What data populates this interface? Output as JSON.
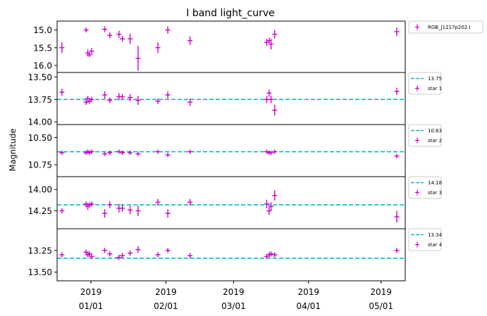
{
  "chart_data": {
    "type": "scatter",
    "title": "I band light_curve",
    "ylabel": "Magnitude",
    "y_inverted": true,
    "x_ticks": [
      {
        "x": 0,
        "line1": "2019",
        "line2": "01/01"
      },
      {
        "x": 31,
        "line1": "2019",
        "line2": "02/01"
      },
      {
        "x": 59,
        "line1": "2019",
        "line2": "03/01"
      },
      {
        "x": 90,
        "line1": "2019",
        "line2": "04/01"
      },
      {
        "x": 120,
        "line1": "2019",
        "line2": "05/01"
      }
    ],
    "xlim": [
      -14,
      130
    ],
    "panels": [
      {
        "name": "RGB_J1117p202 I",
        "label": "RGB_J1117p202 I",
        "ylim": [
          16.2,
          14.75
        ],
        "yticks": [
          15.0,
          15.5,
          16.0
        ],
        "ytick_labels": [
          "15.0",
          "15.5",
          "16.0"
        ],
        "reference": null,
        "points": [
          {
            "x": -12,
            "y": 15.5,
            "err": 0.15
          },
          {
            "x": -2,
            "y": 15.0,
            "err": 0.07
          },
          {
            "x": -1.3,
            "y": 15.65,
            "err": 0.1
          },
          {
            "x": -0.6,
            "y": 15.7,
            "err": 0.07
          },
          {
            "x": 0.3,
            "y": 15.6,
            "err": 0.09
          },
          {
            "x": 5.7,
            "y": 14.98,
            "err": 0.08
          },
          {
            "x": 7.8,
            "y": 15.15,
            "err": 0.08
          },
          {
            "x": 11.6,
            "y": 15.12,
            "err": 0.1
          },
          {
            "x": 13,
            "y": 15.25,
            "err": 0.08
          },
          {
            "x": 16.2,
            "y": 15.25,
            "err": 0.15
          },
          {
            "x": 19.5,
            "y": 15.8,
            "err": 0.35
          },
          {
            "x": 27.7,
            "y": 15.5,
            "err": 0.15
          },
          {
            "x": 31.8,
            "y": 15.0,
            "err": 0.1
          },
          {
            "x": 41,
            "y": 15.3,
            "err": 0.12
          },
          {
            "x": 72.7,
            "y": 15.35,
            "err": 0.1
          },
          {
            "x": 73.7,
            "y": 15.3,
            "err": 0.08
          },
          {
            "x": 74.5,
            "y": 15.4,
            "err": 0.15
          },
          {
            "x": 76,
            "y": 15.12,
            "err": 0.12
          },
          {
            "x": 126.5,
            "y": 15.05,
            "err": 0.12
          }
        ]
      },
      {
        "name": "star 1",
        "label": "star 1",
        "ylim": [
          14.03,
          13.45
        ],
        "yticks": [
          13.5,
          13.75,
          14.0
        ],
        "ytick_labels": [
          "13.50",
          "13.75",
          "14.00"
        ],
        "reference": {
          "value": 13.75,
          "label": "13.75"
        },
        "points": [
          {
            "x": -12,
            "y": 13.67,
            "err": 0.04
          },
          {
            "x": -2,
            "y": 13.78,
            "err": 0.03
          },
          {
            "x": -1.3,
            "y": 13.74,
            "err": 0.03
          },
          {
            "x": -0.6,
            "y": 13.77,
            "err": 0.03
          },
          {
            "x": 0.3,
            "y": 13.75,
            "err": 0.03
          },
          {
            "x": 5.7,
            "y": 13.7,
            "err": 0.04
          },
          {
            "x": 7.8,
            "y": 13.76,
            "err": 0.03
          },
          {
            "x": 11.6,
            "y": 13.72,
            "err": 0.04
          },
          {
            "x": 13,
            "y": 13.72,
            "err": 0.03
          },
          {
            "x": 16.2,
            "y": 13.73,
            "err": 0.04
          },
          {
            "x": 19.5,
            "y": 13.76,
            "err": 0.05
          },
          {
            "x": 27.7,
            "y": 13.77,
            "err": 0.03
          },
          {
            "x": 31.8,
            "y": 13.7,
            "err": 0.04
          },
          {
            "x": 41,
            "y": 13.78,
            "err": 0.04
          },
          {
            "x": 72.7,
            "y": 13.75,
            "err": 0.04
          },
          {
            "x": 73.7,
            "y": 13.68,
            "err": 0.04
          },
          {
            "x": 74.5,
            "y": 13.75,
            "err": 0.04
          },
          {
            "x": 76,
            "y": 13.87,
            "err": 0.06
          },
          {
            "x": 126.5,
            "y": 13.66,
            "err": 0.04
          }
        ]
      },
      {
        "name": "star 2",
        "label": "star 2",
        "ylim": [
          10.86,
          10.38
        ],
        "yticks": [
          10.5,
          10.75
        ],
        "ytick_labels": [
          "10.50",
          "10.75"
        ],
        "reference": {
          "value": 10.63,
          "label": "10.63"
        },
        "points": [
          {
            "x": -12,
            "y": 10.64,
            "err": 0.02
          },
          {
            "x": -2,
            "y": 10.64,
            "err": 0.02
          },
          {
            "x": -1.3,
            "y": 10.63,
            "err": 0.02
          },
          {
            "x": -0.6,
            "y": 10.64,
            "err": 0.02
          },
          {
            "x": 0.3,
            "y": 10.63,
            "err": 0.02
          },
          {
            "x": 5.7,
            "y": 10.65,
            "err": 0.02
          },
          {
            "x": 7.8,
            "y": 10.64,
            "err": 0.02
          },
          {
            "x": 11.6,
            "y": 10.63,
            "err": 0.02
          },
          {
            "x": 13,
            "y": 10.64,
            "err": 0.02
          },
          {
            "x": 16.2,
            "y": 10.64,
            "err": 0.02
          },
          {
            "x": 19.5,
            "y": 10.65,
            "err": 0.02
          },
          {
            "x": 27.7,
            "y": 10.63,
            "err": 0.02
          },
          {
            "x": 31.8,
            "y": 10.66,
            "err": 0.02
          },
          {
            "x": 41,
            "y": 10.63,
            "err": 0.02
          },
          {
            "x": 72.7,
            "y": 10.63,
            "err": 0.02
          },
          {
            "x": 73.7,
            "y": 10.64,
            "err": 0.02
          },
          {
            "x": 74.5,
            "y": 10.64,
            "err": 0.02
          },
          {
            "x": 76,
            "y": 10.63,
            "err": 0.02
          },
          {
            "x": 126.5,
            "y": 10.67,
            "err": 0.02
          }
        ]
      },
      {
        "name": "star 3",
        "label": "star 3",
        "ylim": [
          14.46,
          13.85
        ],
        "yticks": [
          14.0,
          14.25
        ],
        "ytick_labels": [
          "14.00",
          "14.25"
        ],
        "reference": {
          "value": 14.18,
          "label": "14.18"
        },
        "points": [
          {
            "x": -12,
            "y": 14.25,
            "err": 0.03
          },
          {
            "x": -2,
            "y": 14.17,
            "err": 0.03
          },
          {
            "x": -1.3,
            "y": 14.2,
            "err": 0.04
          },
          {
            "x": -0.6,
            "y": 14.18,
            "err": 0.03
          },
          {
            "x": 0.3,
            "y": 14.17,
            "err": 0.03
          },
          {
            "x": 5.7,
            "y": 14.28,
            "err": 0.05
          },
          {
            "x": 7.8,
            "y": 14.18,
            "err": 0.04
          },
          {
            "x": 11.6,
            "y": 14.22,
            "err": 0.05
          },
          {
            "x": 13,
            "y": 14.22,
            "err": 0.04
          },
          {
            "x": 16.2,
            "y": 14.24,
            "err": 0.05
          },
          {
            "x": 19.5,
            "y": 14.25,
            "err": 0.06
          },
          {
            "x": 27.7,
            "y": 14.15,
            "err": 0.04
          },
          {
            "x": 31.8,
            "y": 14.28,
            "err": 0.05
          },
          {
            "x": 41,
            "y": 14.15,
            "err": 0.04
          },
          {
            "x": 72.7,
            "y": 14.17,
            "err": 0.05
          },
          {
            "x": 73.7,
            "y": 14.25,
            "err": 0.05
          },
          {
            "x": 74.5,
            "y": 14.2,
            "err": 0.05
          },
          {
            "x": 76,
            "y": 14.07,
            "err": 0.06
          },
          {
            "x": 126.5,
            "y": 14.32,
            "err": 0.07
          }
        ]
      },
      {
        "name": "star 4",
        "label": "star 4",
        "ylim": [
          13.6,
          13.0
        ],
        "yticks": [
          13.25,
          13.5
        ],
        "ytick_labels": [
          "13.25",
          "13.50"
        ],
        "reference": {
          "value": 13.34,
          "label": "13.34"
        },
        "points": [
          {
            "x": -12,
            "y": 13.3,
            "err": 0.03
          },
          {
            "x": -2,
            "y": 13.27,
            "err": 0.03
          },
          {
            "x": -1.3,
            "y": 13.3,
            "err": 0.03
          },
          {
            "x": -0.6,
            "y": 13.29,
            "err": 0.03
          },
          {
            "x": 0.3,
            "y": 13.32,
            "err": 0.03
          },
          {
            "x": 5.7,
            "y": 13.25,
            "err": 0.03
          },
          {
            "x": 7.8,
            "y": 13.29,
            "err": 0.03
          },
          {
            "x": 11.6,
            "y": 13.33,
            "err": 0.03
          },
          {
            "x": 13,
            "y": 13.31,
            "err": 0.03
          },
          {
            "x": 16.2,
            "y": 13.28,
            "err": 0.03
          },
          {
            "x": 19.5,
            "y": 13.24,
            "err": 0.04
          },
          {
            "x": 27.7,
            "y": 13.3,
            "err": 0.03
          },
          {
            "x": 31.8,
            "y": 13.25,
            "err": 0.03
          },
          {
            "x": 41,
            "y": 13.31,
            "err": 0.03
          },
          {
            "x": 72.7,
            "y": 13.32,
            "err": 0.03
          },
          {
            "x": 73.7,
            "y": 13.3,
            "err": 0.03
          },
          {
            "x": 74.5,
            "y": 13.29,
            "err": 0.03
          },
          {
            "x": 76,
            "y": 13.3,
            "err": 0.03
          },
          {
            "x": 126.5,
            "y": 13.25,
            "err": 0.03
          }
        ]
      }
    ],
    "colors": {
      "points": "#cc00cc",
      "reference": "#00bfbf",
      "axes": "#000000"
    },
    "grid": false,
    "legend_placement": "outside-right"
  }
}
